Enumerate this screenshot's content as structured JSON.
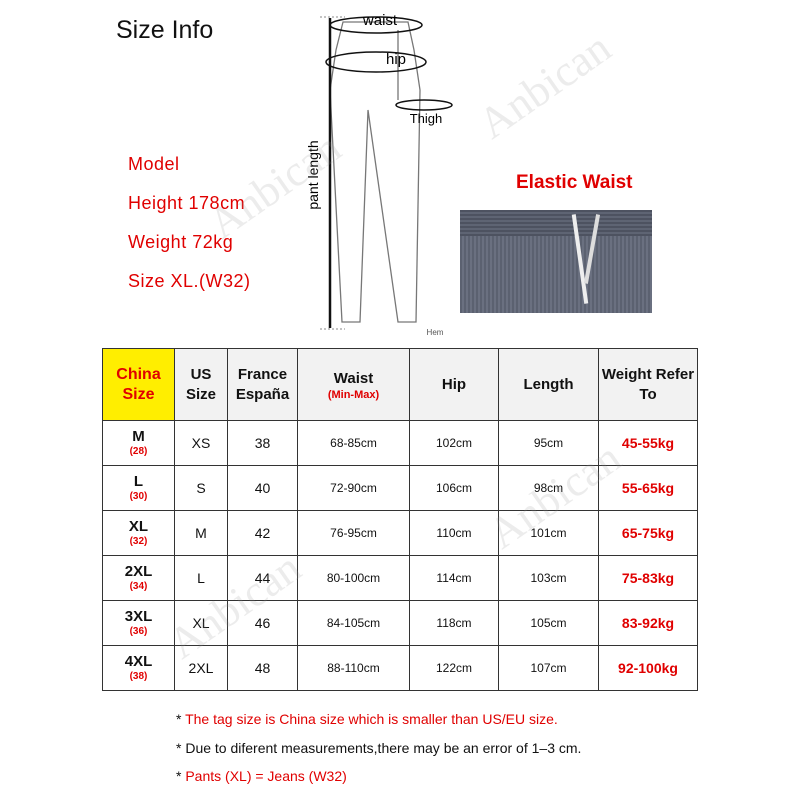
{
  "title": "Size Info",
  "diagram": {
    "waist": "waist",
    "hip": "hip",
    "thigh": "Thigh",
    "pant_length": "pant length",
    "hem": "Hem"
  },
  "model": {
    "label": "Model",
    "height": "Height 178cm",
    "weight": "Weight 72kg",
    "size": "Size XL.(W32)"
  },
  "feature": {
    "label": "Elastic Waist"
  },
  "watermark": "Anbican",
  "table": {
    "headers": {
      "china": "China Size",
      "us": "US Size",
      "france": "France España",
      "waist": "Waist",
      "waist_sub": "(Min-Max)",
      "hip": "Hip",
      "length": "Length",
      "weight": "Weight Refer To"
    },
    "rows": [
      {
        "china": "M",
        "w": "(28)",
        "us": "XS",
        "fr": "38",
        "waist": "68-85cm",
        "hip": "102cm",
        "length": "95cm",
        "weight": "45-55kg"
      },
      {
        "china": "L",
        "w": "(30)",
        "us": "S",
        "fr": "40",
        "waist": "72-90cm",
        "hip": "106cm",
        "length": "98cm",
        "weight": "55-65kg"
      },
      {
        "china": "XL",
        "w": "(32)",
        "us": "M",
        "fr": "42",
        "waist": "76-95cm",
        "hip": "110cm",
        "length": "101cm",
        "weight": "65-75kg"
      },
      {
        "china": "2XL",
        "w": "(34)",
        "us": "L",
        "fr": "44",
        "waist": "80-100cm",
        "hip": "114cm",
        "length": "103cm",
        "weight": "75-83kg"
      },
      {
        "china": "3XL",
        "w": "(36)",
        "us": "XL",
        "fr": "46",
        "waist": "84-105cm",
        "hip": "118cm",
        "length": "105cm",
        "weight": "83-92kg"
      },
      {
        "china": "4XL",
        "w": "(38)",
        "us": "2XL",
        "fr": "48",
        "waist": "88-110cm",
        "hip": "122cm",
        "length": "107cm",
        "weight": "92-100kg"
      }
    ]
  },
  "notes": {
    "n1": "The tag size is China size which is smaller than US/EU size.",
    "n2": "Due to diferent measurements,there may be an error of 1–3 cm.",
    "n3": "Pants (XL) = Jeans (W32)",
    "bullet": "*"
  },
  "colors": {
    "accent_red": "#e00000",
    "highlight_yellow": "#ffee00"
  }
}
